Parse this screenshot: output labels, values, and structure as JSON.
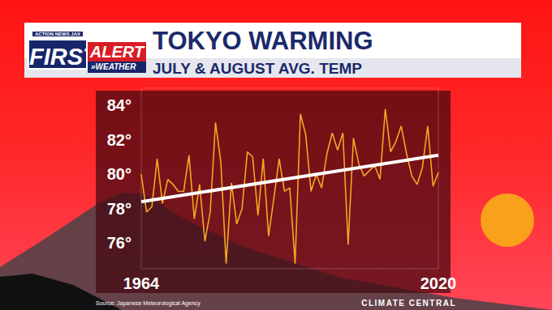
{
  "chart_data": {
    "type": "line",
    "title": "TOKYO WARMING",
    "subtitle": "JULY & AUGUST AVG. TEMP",
    "x": [
      1964,
      1965,
      1966,
      1967,
      1968,
      1969,
      1970,
      1971,
      1972,
      1973,
      1974,
      1975,
      1976,
      1977,
      1978,
      1979,
      1980,
      1981,
      1982,
      1983,
      1984,
      1985,
      1986,
      1987,
      1988,
      1989,
      1990,
      1991,
      1992,
      1993,
      1994,
      1995,
      1996,
      1997,
      1998,
      1999,
      2000,
      2001,
      2002,
      2003,
      2004,
      2005,
      2006,
      2007,
      2008,
      2009,
      2010,
      2011,
      2012,
      2013,
      2014,
      2015,
      2016,
      2017,
      2018,
      2019,
      2020
    ],
    "series": [
      {
        "color": "#f5a623",
        "marker": "none",
        "line_style": "solid",
        "values": [
          80.0,
          77.8,
          78.1,
          80.9,
          78.3,
          79.7,
          79.4,
          79.0,
          79.0,
          81.1,
          77.4,
          79.4,
          76.1,
          77.8,
          83.0,
          80.7,
          74.8,
          79.5,
          77.1,
          78.0,
          81.3,
          81.0,
          77.6,
          80.9,
          76.4,
          78.6,
          80.9,
          79.0,
          79.2,
          74.8,
          83.5,
          82.3,
          79.0,
          80.0,
          79.2,
          81.2,
          82.4,
          81.4,
          82.4,
          75.9,
          82.1,
          80.6,
          79.9,
          80.2,
          80.5,
          79.7,
          83.8,
          81.3,
          81.9,
          82.8,
          81.2,
          79.9,
          79.4,
          80.4,
          82.8,
          79.3,
          80.1
        ]
      },
      {
        "color": "#ffffff",
        "marker": "none",
        "line_style": "solid",
        "x": [
          1964,
          2020
        ],
        "values": [
          78.4,
          81.1
        ]
      }
    ],
    "xlim": [
      1964,
      2020
    ],
    "xticks": [
      1964,
      2020
    ],
    "ylim": [
      74.5,
      85
    ],
    "yticks": [
      {
        "value": 76,
        "label": "76°"
      },
      {
        "value": 78,
        "label": "78°"
      },
      {
        "value": 80,
        "label": "80°"
      },
      {
        "value": 82,
        "label": "82°"
      },
      {
        "value": 84,
        "label": "84°"
      }
    ],
    "grid": false
  },
  "header": {
    "logo": [
      "ACTION NEWS JAX",
      "FIRST",
      "ALERT",
      "»WEATHER"
    ]
  },
  "footer": {
    "source": "Source: Japanese Meteorological Agency",
    "credit": "CLIMATE CENTRAL"
  }
}
